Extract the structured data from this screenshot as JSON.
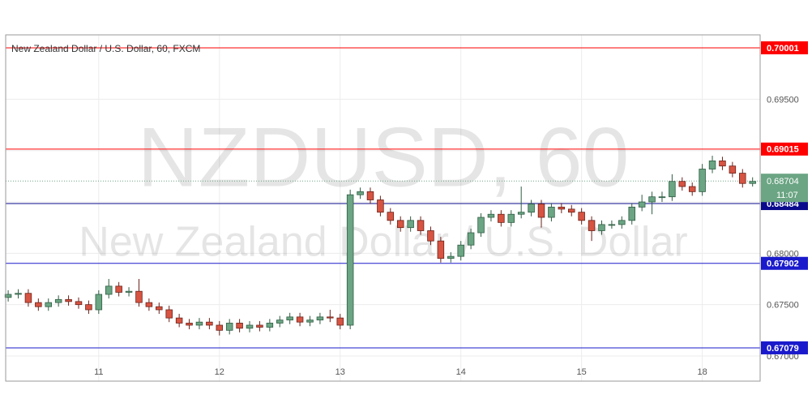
{
  "chart_data": {
    "type": "candlestick",
    "title": "New Zealand Dollar / U.S. Dollar, 60, FXCM",
    "watermark": "NZDUSD, 60",
    "watermark_subtitle": "New Zealand Dollar / U.S. Dollar",
    "x": [
      0,
      2,
      4,
      6,
      8,
      10,
      12,
      14,
      16,
      18,
      20,
      22,
      24,
      26,
      28,
      30,
      32,
      34,
      36,
      38,
      40,
      42,
      44,
      46,
      48,
      50,
      52,
      54,
      56,
      58,
      60,
      62,
      64,
      66,
      68,
      70,
      72,
      74,
      76,
      78,
      80,
      82,
      84,
      86,
      88,
      90,
      92,
      94,
      96,
      98,
      100,
      102,
      104,
      106,
      108,
      110,
      112,
      114,
      116,
      118,
      120,
      122,
      124,
      126,
      128,
      130,
      132,
      134,
      136,
      138,
      140,
      142,
      144,
      146,
      148
    ],
    "open": [
      0.6757,
      0.676,
      0.6761,
      0.6752,
      0.6748,
      0.6752,
      0.6755,
      0.6753,
      0.675,
      0.6745,
      0.676,
      0.6768,
      0.6762,
      0.6763,
      0.6752,
      0.6748,
      0.6745,
      0.6737,
      0.6732,
      0.673,
      0.6733,
      0.673,
      0.6725,
      0.6732,
      0.6727,
      0.673,
      0.6728,
      0.6732,
      0.6735,
      0.6738,
      0.6733,
      0.6735,
      0.6738,
      0.6737,
      0.673,
      0.6857,
      0.686,
      0.6852,
      0.684,
      0.6832,
      0.6825,
      0.6832,
      0.6822,
      0.6812,
      0.6795,
      0.6797,
      0.6808,
      0.682,
      0.6835,
      0.6838,
      0.683,
      0.6838,
      0.684,
      0.6848,
      0.6835,
      0.6845,
      0.6843,
      0.684,
      0.6832,
      0.6822,
      0.6828,
      0.6828,
      0.6832,
      0.6845,
      0.685,
      0.6855,
      0.6855,
      0.687,
      0.6865,
      0.686,
      0.6882,
      0.689,
      0.6885,
      0.6878,
      0.6868
    ],
    "high": [
      0.6764,
      0.6765,
      0.6765,
      0.6756,
      0.6756,
      0.6759,
      0.6759,
      0.6757,
      0.6754,
      0.6764,
      0.6775,
      0.6772,
      0.6767,
      0.6775,
      0.6756,
      0.6752,
      0.6749,
      0.6741,
      0.6736,
      0.6737,
      0.6737,
      0.6734,
      0.6736,
      0.6736,
      0.6734,
      0.6734,
      0.6736,
      0.6739,
      0.6742,
      0.6742,
      0.6739,
      0.6742,
      0.6745,
      0.6741,
      0.6862,
      0.6864,
      0.6864,
      0.6856,
      0.6844,
      0.6836,
      0.6836,
      0.6836,
      0.6826,
      0.6816,
      0.6801,
      0.6812,
      0.6824,
      0.6839,
      0.6842,
      0.6842,
      0.6842,
      0.6865,
      0.6852,
      0.6852,
      0.6849,
      0.6849,
      0.6847,
      0.6844,
      0.6836,
      0.6832,
      0.6832,
      0.6836,
      0.6849,
      0.6857,
      0.686,
      0.686,
      0.6877,
      0.6874,
      0.6869,
      0.6887,
      0.6895,
      0.6894,
      0.6889,
      0.6882,
      0.6874
    ],
    "low": [
      0.6753,
      0.6756,
      0.6748,
      0.6744,
      0.6744,
      0.6748,
      0.6749,
      0.6746,
      0.6741,
      0.6741,
      0.6756,
      0.6758,
      0.6758,
      0.6748,
      0.6744,
      0.6741,
      0.6733,
      0.6728,
      0.6726,
      0.6726,
      0.6726,
      0.672,
      0.6721,
      0.6723,
      0.6723,
      0.6724,
      0.6724,
      0.6728,
      0.6731,
      0.6729,
      0.6729,
      0.6731,
      0.6733,
      0.6726,
      0.6726,
      0.6853,
      0.6848,
      0.6836,
      0.6828,
      0.6821,
      0.6821,
      0.6818,
      0.6808,
      0.6791,
      0.6791,
      0.6793,
      0.6804,
      0.6816,
      0.6831,
      0.6826,
      0.6826,
      0.6834,
      0.6836,
      0.6825,
      0.6831,
      0.6839,
      0.6836,
      0.6828,
      0.6812,
      0.6818,
      0.6824,
      0.6824,
      0.6828,
      0.6841,
      0.6838,
      0.685,
      0.6851,
      0.6861,
      0.6856,
      0.6856,
      0.6878,
      0.6881,
      0.6874,
      0.6864,
      0.6865
    ],
    "close": [
      0.676,
      0.6761,
      0.6752,
      0.6748,
      0.6752,
      0.6755,
      0.6753,
      0.675,
      0.6745,
      0.676,
      0.6768,
      0.6762,
      0.6763,
      0.6752,
      0.6748,
      0.6745,
      0.6737,
      0.6732,
      0.673,
      0.6733,
      0.673,
      0.6725,
      0.6732,
      0.6727,
      0.673,
      0.6728,
      0.6732,
      0.6735,
      0.6738,
      0.6733,
      0.6735,
      0.6738,
      0.6737,
      0.673,
      0.6857,
      0.686,
      0.6852,
      0.684,
      0.6832,
      0.6825,
      0.6832,
      0.6822,
      0.6812,
      0.6795,
      0.6797,
      0.6808,
      0.682,
      0.6835,
      0.6838,
      0.683,
      0.6838,
      0.684,
      0.6848,
      0.6835,
      0.6845,
      0.6843,
      0.684,
      0.6832,
      0.6822,
      0.6828,
      0.6828,
      0.6832,
      0.6845,
      0.685,
      0.6855,
      0.6855,
      0.687,
      0.6865,
      0.686,
      0.6882,
      0.689,
      0.6885,
      0.6878,
      0.6868,
      0.687
    ],
    "up_color": "#6ba583",
    "down_color": "#d75442",
    "xlim": [
      -0.5,
      149.5
    ],
    "xticks": [
      {
        "value": 18,
        "label": "11"
      },
      {
        "value": 42,
        "label": "12"
      },
      {
        "value": 66,
        "label": "13"
      },
      {
        "value": 90,
        "label": "14"
      },
      {
        "value": 114,
        "label": "15"
      },
      {
        "value": 138,
        "label": "18"
      }
    ],
    "ylim": [
      0.66755,
      0.70127
    ],
    "yticks": [
      {
        "value": 0.67,
        "label": "0.67000"
      },
      {
        "value": 0.675,
        "label": "0.67500"
      },
      {
        "value": 0.68,
        "label": "0.68000"
      },
      {
        "value": 0.685,
        "label": "0.68500"
      },
      {
        "value": 0.69,
        "label": "0.69000"
      },
      {
        "value": 0.695,
        "label": "0.69500"
      },
      {
        "value": 0.7,
        "label": "0.70000"
      }
    ],
    "grid": true,
    "levels": [
      {
        "value": 0.70001,
        "color": "#ff0000"
      },
      {
        "value": 0.69015,
        "color": "#ff0000"
      },
      {
        "value": 0.68484,
        "color": "#0a0a8c"
      },
      {
        "value": 0.67902,
        "color": "#1a1acc"
      },
      {
        "value": 0.67079,
        "color": "#1a1acc"
      }
    ],
    "last_price": {
      "value": 0.68704,
      "color": "#6ba583",
      "time_left": "11:07"
    }
  }
}
